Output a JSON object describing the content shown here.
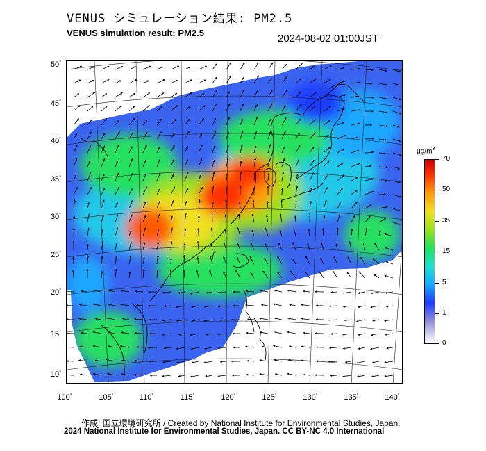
{
  "header": {
    "title_jp": "VENUS シミュレーション結果: PM2.5",
    "title_en": "VENUS simulation result: PM2.5",
    "timestamp": "2024-08-02 01:00JST"
  },
  "map": {
    "latitude_labels": [
      "50",
      "45",
      "40",
      "35",
      "30",
      "25",
      "20",
      "15",
      "10"
    ],
    "longitude_labels": [
      "100",
      "105",
      "110",
      "115",
      "120",
      "125",
      "130",
      "135",
      "140"
    ],
    "degree_symbol": "°",
    "layers": [
      "pm25-concentration-field",
      "wind-vectors",
      "coastlines",
      "graticule"
    ]
  },
  "colorbar": {
    "unit": "μg/m",
    "unit_exponent": "3",
    "ticks": [
      "70",
      "50",
      "35",
      "15",
      "5",
      "1",
      "0"
    ],
    "colors": [
      "#ffffff",
      "#9090d8",
      "#1c3cff",
      "#1aa8ff",
      "#22e0d0",
      "#25e060",
      "#9ae020",
      "#f0e020",
      "#ff9a10",
      "#ff3000",
      "#c80000"
    ]
  },
  "footer": {
    "credit_jp": "作成: 国立環境研究所 / Created by National Institute for Environmental Studies, Japan.",
    "credit_en": "2024 National Institute for Environmental Studies, Japan. CC BY-NC 4.0 International"
  }
}
